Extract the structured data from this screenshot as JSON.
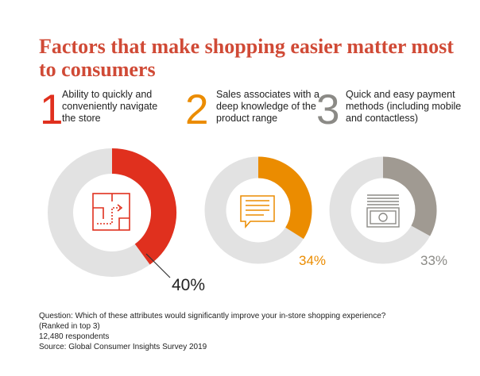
{
  "title": "Factors that make shopping easier matter most to consumers",
  "factors": [
    {
      "number": "1",
      "text": "Ability to quickly and conveniently navigate the store",
      "percent_label": "40%",
      "icon": "store-map-icon"
    },
    {
      "number": "2",
      "text": "Sales associates with a deep knowledge of the product range",
      "percent_label": "34%",
      "icon": "speech-bubble-icon"
    },
    {
      "number": "3",
      "text": "Quick and easy payment methods (including mobile and contactless)",
      "percent_label": "33%",
      "icon": "cash-icon"
    }
  ],
  "colors": {
    "title": "#d04a36",
    "factor1": "#e0301e",
    "factor2": "#eb8c00",
    "factor3": "#a09a92",
    "track": "#e2e2e2"
  },
  "chart_data": {
    "type": "pie",
    "categories": [
      "Ability to quickly and conveniently navigate the store",
      "Sales associates with a deep knowledge of the product range",
      "Quick and easy payment methods (including mobile and contactless)"
    ],
    "values": [
      40,
      34,
      33
    ],
    "unit": "%"
  },
  "notes": {
    "question": "Question: Which of these attributes would significantly improve your in-store shopping experience?",
    "ranked": "(Ranked in top 3)",
    "respondents": "12,480 respondents",
    "source": "Source: Global Consumer Insights Survey 2019"
  }
}
